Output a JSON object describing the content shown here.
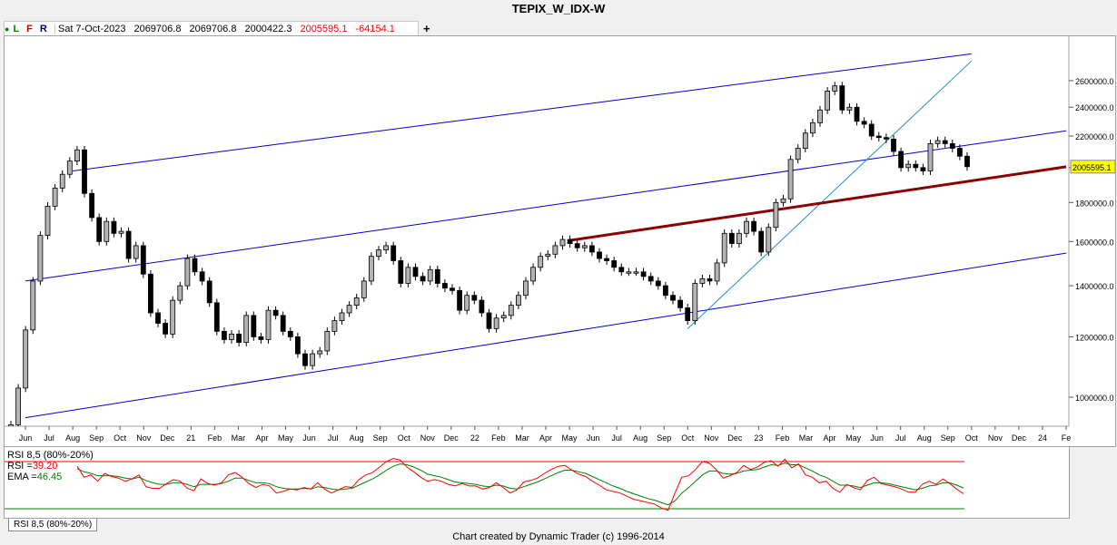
{
  "title": "TEPIX_W_IDX-W",
  "toolbar": {
    "flags": [
      {
        "label": "L",
        "color": "#008000"
      },
      {
        "label": "F",
        "color": "#c00000"
      },
      {
        "label": "R",
        "color": "#00008b"
      }
    ],
    "date": "Sat 7-Oct-2023",
    "open": "2069706.8",
    "high": "2069706.8",
    "low": "2000422.3",
    "close": "2005595.1",
    "change": "-64154.1",
    "add_icon": "+"
  },
  "footer": "Chart created by Dynamic Trader  (c) 1996-2014",
  "rsi_tab": "RSI 8,5 (80%-20%)",
  "chart_data": {
    "type": "candlestick",
    "price_axis": {
      "ticks": [
        1000000,
        1200000,
        1400000,
        1600000,
        1800000,
        2000000,
        2200000,
        2400000,
        2600000
      ],
      "tick_labels": [
        "1000000.0",
        "1200000.0",
        "1400000.0",
        "1600000.0",
        "1800000.0",
        "2000000.0",
        "2200000.0",
        "2400000.0",
        "2600000.0"
      ],
      "scale": "log",
      "last_price_label": "2005595.1"
    },
    "time_axis_labels": [
      "Jun",
      "Jul",
      "Aug",
      "Sep",
      "Oct",
      "Nov",
      "Dec",
      "21",
      "Feb",
      "Mar",
      "Apr",
      "May",
      "Jun",
      "Jul",
      "Aug",
      "Sep",
      "Oct",
      "Nov",
      "Dec",
      "22",
      "Feb",
      "Mar",
      "Apr",
      "May",
      "Jun",
      "Jul",
      "Aug",
      "Sep",
      "Oct",
      "Nov",
      "Dec",
      "23",
      "Feb",
      "Mar",
      "Apr",
      "May",
      "Jun",
      "Jul",
      "Aug",
      "Sep",
      "Oct",
      "Nov",
      "Dec",
      "24",
      "Fe"
    ],
    "colors": {
      "up_candle": "#b4b4b4",
      "down_candle": "#000000",
      "channel": "#0000c8",
      "fan_line": "#1e90c8",
      "trend_line": "#8b0000",
      "rsi_line": "#ff0000",
      "ema_line": "#008000",
      "rsi_upper_band": "#ff0000",
      "rsi_lower_band": "#008000"
    },
    "closes": [
      920000,
      1028000,
      1225000,
      1420000,
      1630000,
      1780000,
      1880000,
      1960000,
      2040000,
      2110000,
      1850000,
      1720000,
      1600000,
      1700000,
      1640000,
      1650000,
      1520000,
      1580000,
      1450000,
      1290000,
      1250000,
      1210000,
      1340000,
      1400000,
      1520000,
      1460000,
      1420000,
      1330000,
      1220000,
      1190000,
      1210000,
      1180000,
      1280000,
      1200000,
      1190000,
      1300000,
      1280000,
      1220000,
      1200000,
      1140000,
      1100000,
      1140000,
      1150000,
      1220000,
      1260000,
      1290000,
      1320000,
      1350000,
      1420000,
      1530000,
      1560000,
      1580000,
      1510000,
      1410000,
      1480000,
      1440000,
      1420000,
      1470000,
      1410000,
      1390000,
      1380000,
      1300000,
      1360000,
      1340000,
      1290000,
      1230000,
      1270000,
      1280000,
      1320000,
      1360000,
      1420000,
      1480000,
      1530000,
      1540000,
      1580000,
      1610000,
      1590000,
      1570000,
      1580000,
      1550000,
      1520000,
      1510000,
      1480000,
      1460000,
      1460000,
      1460000,
      1440000,
      1420000,
      1400000,
      1360000,
      1340000,
      1310000,
      1260000,
      1410000,
      1430000,
      1420000,
      1500000,
      1640000,
      1590000,
      1640000,
      1700000,
      1650000,
      1550000,
      1670000,
      1800000,
      1820000,
      2050000,
      2120000,
      2220000,
      2290000,
      2380000,
      2520000,
      2560000,
      2380000,
      2400000,
      2300000,
      2280000,
      2200000,
      2190000,
      2180000,
      2100000,
      2000000,
      2020000,
      2000000,
      1980000,
      2150000,
      2170000,
      2150000,
      2120000,
      2070000,
      2005595
    ],
    "channel_lines": [
      {
        "from": [
          "Jun 2020",
          940000
        ],
        "to": [
          "Feb 2024",
          1545000
        ]
      },
      {
        "from": [
          "Jun 2020",
          1420000
        ],
        "to": [
          "Feb 2024",
          2235000
        ]
      },
      {
        "from": [
          "Aug 2020",
          1980000
        ],
        "to": [
          "Oct 2023",
          2820000
        ]
      }
    ],
    "fan_line": {
      "from": [
        "Oct 2022",
        1230000
      ],
      "to": [
        "Oct 2023",
        2760000
      ]
    },
    "trend_line": {
      "from": [
        "May 2022",
        1605000
      ],
      "to": [
        "Feb 2024",
        2005000
      ]
    },
    "rsi": {
      "title": "RSI 8,5 (80%-20%)",
      "rsi_label": "RSI =",
      "rsi_value": "39.20",
      "ema_label": "EMA =",
      "ema_value": "46.45",
      "upper_band": 80,
      "lower_band": 20,
      "values": [
        74,
        60,
        63,
        55,
        65,
        61,
        59,
        55,
        58,
        63,
        48,
        46,
        46,
        52,
        57,
        55,
        46,
        43,
        58,
        52,
        50,
        53,
        63,
        66,
        60,
        52,
        47,
        51,
        49,
        40,
        42,
        45,
        44,
        47,
        45,
        53,
        45,
        40,
        44,
        48,
        47,
        57,
        63,
        66,
        73,
        80,
        84,
        82,
        73,
        67,
        60,
        55,
        57,
        55,
        51,
        49,
        52,
        49,
        49,
        45,
        47,
        53,
        47,
        40,
        44,
        54,
        56,
        59,
        65,
        70,
        74,
        75,
        69,
        64,
        61,
        55,
        50,
        44,
        42,
        40,
        36,
        32,
        30,
        28,
        26,
        21,
        18,
        40,
        60,
        62,
        70,
        80,
        78,
        70,
        59,
        62,
        66,
        75,
        70,
        73,
        79,
        81,
        74,
        83,
        72,
        77,
        63,
        60,
        53,
        55,
        46,
        41,
        51,
        47,
        44,
        56,
        60,
        52,
        50,
        48,
        45,
        41,
        41,
        51,
        55,
        51,
        58,
        52,
        45,
        39.2
      ],
      "ema_values": [
        71,
        67,
        65,
        62,
        62,
        62,
        61,
        59,
        58,
        60,
        56,
        53,
        51,
        51,
        53,
        53,
        51,
        48,
        51,
        51,
        51,
        52,
        55,
        59,
        59,
        56,
        53,
        53,
        52,
        48,
        46,
        45,
        45,
        46,
        45,
        48,
        47,
        45,
        44,
        45,
        46,
        50,
        54,
        58,
        63,
        69,
        74,
        77,
        76,
        73,
        69,
        64,
        62,
        60,
        57,
        54,
        53,
        52,
        51,
        49,
        48,
        50,
        49,
        46,
        45,
        48,
        51,
        54,
        58,
        62,
        66,
        69,
        69,
        67,
        65,
        61,
        57,
        53,
        49,
        46,
        42,
        39,
        36,
        33,
        31,
        28,
        25,
        30,
        40,
        47,
        55,
        63,
        68,
        68,
        65,
        64,
        65,
        68,
        69,
        70,
        73,
        76,
        75,
        78,
        76,
        76,
        72,
        68,
        63,
        60,
        55,
        50,
        50,
        49,
        47,
        50,
        53,
        53,
        52,
        50,
        48,
        46,
        44,
        46,
        49,
        50,
        53,
        53,
        50,
        46.45
      ]
    }
  }
}
